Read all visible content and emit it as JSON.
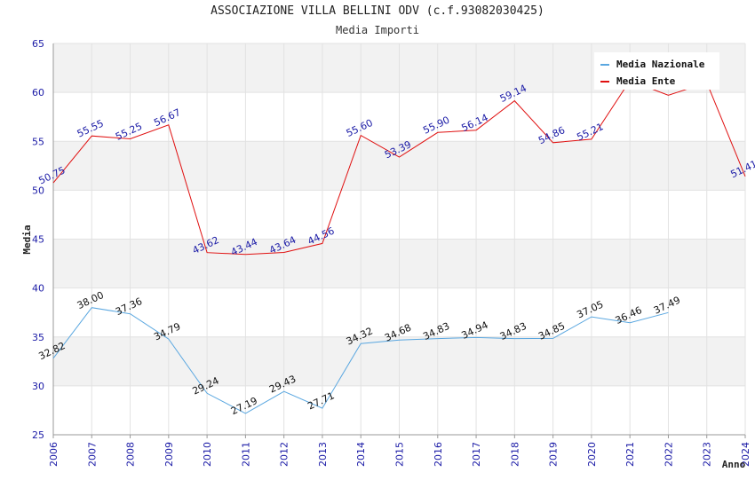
{
  "chart_data": {
    "type": "line",
    "title": "ASSOCIAZIONE VILLA BELLINI ODV (c.f.93082030425)",
    "subtitle": "Media Importi",
    "xlabel": "Anno",
    "ylabel": "Media",
    "ylim": [
      25,
      65
    ],
    "yticks": [
      "25",
      "30",
      "35",
      "40",
      "45",
      "50",
      "55",
      "60",
      "65"
    ],
    "x": [
      "2006",
      "2007",
      "2008",
      "2009",
      "2010",
      "2011",
      "2012",
      "2013",
      "2014",
      "2015",
      "2016",
      "2017",
      "2018",
      "2019",
      "2020",
      "2021",
      "2022",
      "2023",
      "2024"
    ],
    "grid": true,
    "legend_position": "top-right",
    "series": [
      {
        "name": "Media Nazionale",
        "color": "#5aa7e0",
        "values": [
          32.82,
          38.0,
          37.36,
          34.79,
          29.24,
          27.19,
          29.43,
          27.71,
          34.32,
          34.68,
          34.83,
          34.94,
          34.83,
          34.85,
          37.05,
          36.46,
          37.49,
          null,
          null
        ],
        "labels": [
          "32.82",
          "38.00",
          "37.36",
          "34.79",
          "29.24",
          "27.19",
          "29.43",
          "27.71",
          "34.32",
          "34.68",
          "34.83",
          "34.94",
          "34.83",
          "34.85",
          "37.05",
          "36.46",
          "37.49",
          "",
          ""
        ]
      },
      {
        "name": "Media Ente",
        "color": "#e01010",
        "values": [
          50.75,
          55.55,
          55.25,
          56.67,
          43.62,
          43.44,
          43.64,
          44.56,
          55.6,
          53.39,
          55.9,
          56.14,
          59.14,
          54.86,
          55.21,
          61.2,
          59.7,
          61.0,
          51.41
        ],
        "labels": [
          "50.75",
          "55.55",
          "55.25",
          "56.67",
          "43.62",
          "43.44",
          "43.64",
          "44.56",
          "55.60",
          "53.39",
          "55.90",
          "56.14",
          "59.14",
          "54.86",
          "55.21",
          "",
          "",
          "",
          "51.41"
        ]
      }
    ]
  }
}
